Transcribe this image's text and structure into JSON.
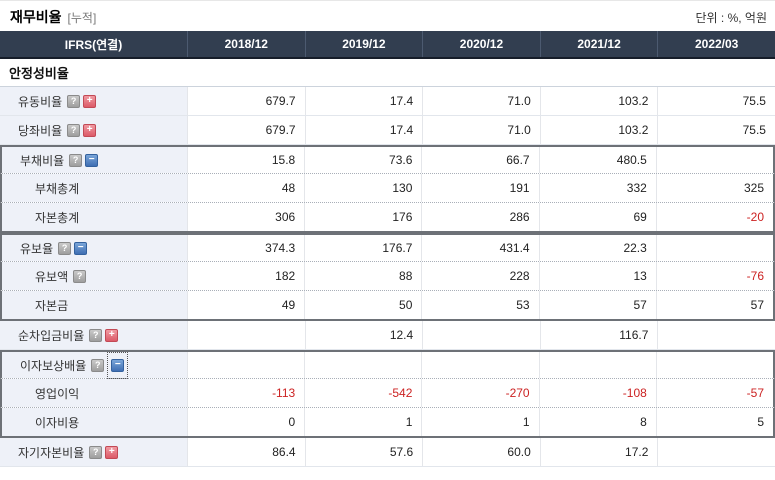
{
  "page": {
    "title": "재무비율",
    "title_tag": "[누적]",
    "unit": "단위 : %, 억원"
  },
  "icons": {
    "help": "?",
    "plus": "+",
    "minus": "−"
  },
  "colors": {
    "header_bg": "#323e50",
    "label_bg": "#eef1f8",
    "negative": "#cc2222",
    "expand_icon": "#dc5a68",
    "collapse_icon": "#3f6fb3",
    "group_outline": "#6d7177"
  },
  "table": {
    "corner": "IFRS(연결)",
    "columns": [
      "2018/12",
      "2019/12",
      "2020/12",
      "2021/12",
      "2022/03"
    ],
    "section": "안정성비율",
    "rows": [
      {
        "label": "유동비율",
        "sub": false,
        "help": true,
        "toggle": "plus",
        "focused": false,
        "group": null,
        "values": [
          "679.7",
          "17.4",
          "71.0",
          "103.2",
          "75.5"
        ]
      },
      {
        "label": "당좌비율",
        "sub": false,
        "help": true,
        "toggle": "plus",
        "focused": false,
        "group": null,
        "values": [
          "679.7",
          "17.4",
          "71.0",
          "103.2",
          "75.5"
        ]
      },
      {
        "label": "부채비율",
        "sub": false,
        "help": true,
        "toggle": "minus",
        "focused": false,
        "group": "start",
        "values": [
          "15.8",
          "73.6",
          "66.7",
          "480.5",
          ""
        ]
      },
      {
        "label": "부채총계",
        "sub": true,
        "help": false,
        "toggle": null,
        "focused": false,
        "group": "mid",
        "values": [
          "48",
          "130",
          "191",
          "332",
          "325"
        ]
      },
      {
        "label": "자본총계",
        "sub": true,
        "help": false,
        "toggle": null,
        "focused": false,
        "group": "end",
        "values": [
          "306",
          "176",
          "286",
          "69",
          "-20"
        ]
      },
      {
        "label": "유보율",
        "sub": false,
        "help": true,
        "toggle": "minus",
        "focused": false,
        "group": "start",
        "values": [
          "374.3",
          "176.7",
          "431.4",
          "22.3",
          ""
        ]
      },
      {
        "label": "유보액",
        "sub": true,
        "help": true,
        "toggle": null,
        "focused": false,
        "group": "mid",
        "values": [
          "182",
          "88",
          "228",
          "13",
          "-76"
        ]
      },
      {
        "label": "자본금",
        "sub": true,
        "help": false,
        "toggle": null,
        "focused": false,
        "group": "end",
        "values": [
          "49",
          "50",
          "53",
          "57",
          "57"
        ]
      },
      {
        "label": "순차입금비율",
        "sub": false,
        "help": true,
        "toggle": "plus",
        "focused": false,
        "group": null,
        "values": [
          "",
          "12.4",
          "",
          "116.7",
          ""
        ]
      },
      {
        "label": "이자보상배율",
        "sub": false,
        "help": true,
        "toggle": "minus",
        "focused": true,
        "group": "start",
        "values": [
          "",
          "",
          "",
          "",
          ""
        ]
      },
      {
        "label": "영업이익",
        "sub": true,
        "help": false,
        "toggle": null,
        "focused": false,
        "group": "mid",
        "values": [
          "-113",
          "-542",
          "-270",
          "-108",
          "-57"
        ]
      },
      {
        "label": "이자비용",
        "sub": true,
        "help": false,
        "toggle": null,
        "focused": false,
        "group": "end",
        "values": [
          "0",
          "1",
          "1",
          "8",
          "5"
        ]
      },
      {
        "label": "자기자본비율",
        "sub": false,
        "help": true,
        "toggle": "plus",
        "focused": false,
        "group": null,
        "values": [
          "86.4",
          "57.6",
          "60.0",
          "17.2",
          ""
        ]
      }
    ]
  }
}
